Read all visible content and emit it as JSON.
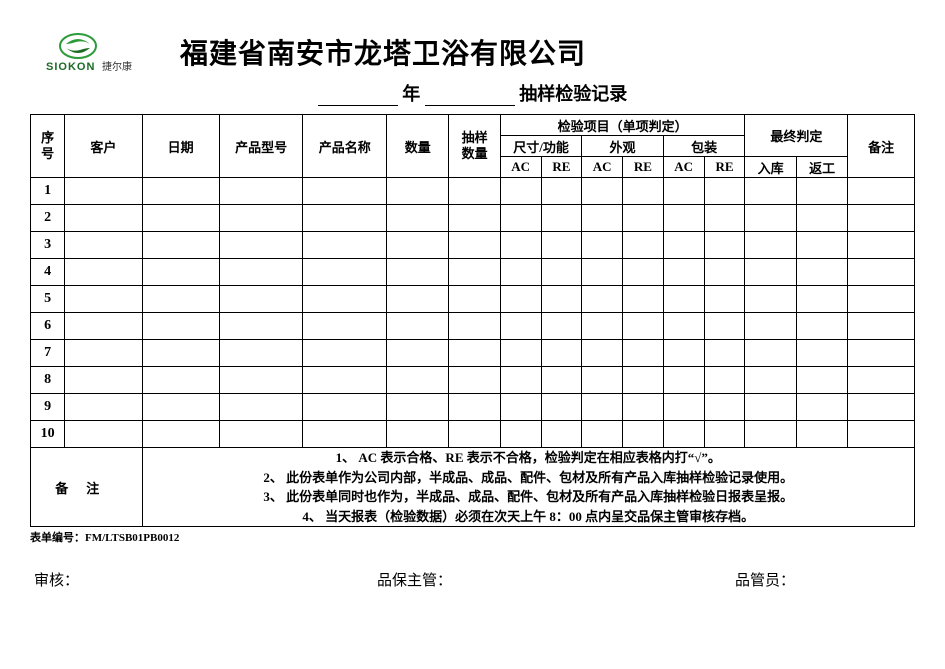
{
  "header": {
    "logo_text": "SIOKON",
    "company_name": "福建省南安市龙塔卫浴有限公司"
  },
  "subtitle": {
    "year_label": "年",
    "record_label": "抽样检验记录"
  },
  "columns": {
    "seq": "序号",
    "customer": "客户",
    "date": "日期",
    "model": "产品型号",
    "name": "产品名称",
    "qty": "数量",
    "sample_qty": "抽样数量",
    "inspect_group": "检验项目（单项判定）",
    "size_func": "尺寸/功能",
    "appearance": "外观",
    "packaging": "包装",
    "ac": "AC",
    "re": "RE",
    "final_group": "最终判定",
    "in_stock": "入库",
    "rework": "返工",
    "remark": "备注"
  },
  "row_numbers": [
    "1",
    "2",
    "3",
    "4",
    "5",
    "6",
    "7",
    "8",
    "9",
    "10"
  ],
  "notes": {
    "label": "备注",
    "lines": [
      "1、 AC 表示合格、RE 表示不合格，检验判定在相应表格内打“√”。",
      "2、 此份表单作为公司内部，半成品、成品、配件、包材及所有产品入库抽样检验记录使用。",
      "3、 此份表单同时也作为，半成品、成品、配件、包材及所有产品入库抽样检验日报表呈报。",
      "4、 当天报表（检验数据）必须在次天上午 8：00 点内呈交品保主管审核存档。"
    ]
  },
  "form_code_label": "表单编号：",
  "form_code_value": "FM/LTSB01PB0012",
  "sign": {
    "audit": "审核：",
    "qa_lead": "品保主管：",
    "qc": "品管员："
  },
  "style": {
    "border_color": "#000000",
    "bg": "#ffffff",
    "logo_green": "#2e9b3a",
    "logo_dark": "#1a6b24"
  }
}
